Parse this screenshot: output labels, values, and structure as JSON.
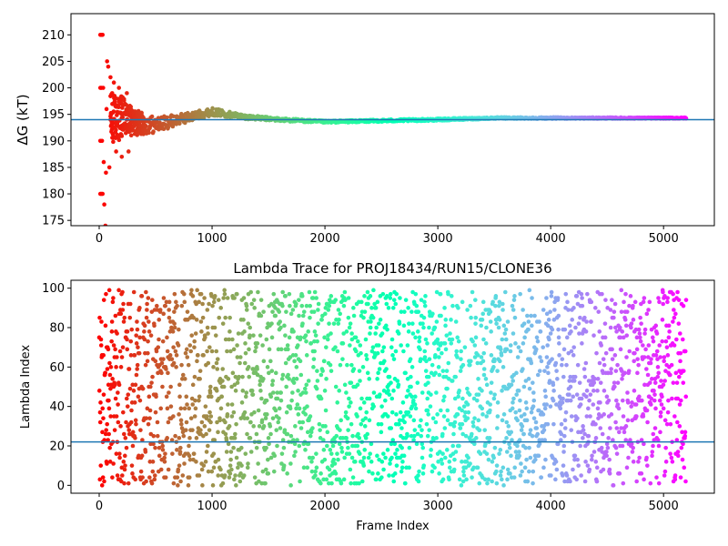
{
  "chart_data": [
    {
      "type": "scatter",
      "title": "",
      "xlabel": "",
      "ylabel": "ΔG (kT)",
      "xlim": [
        -250,
        5450
      ],
      "ylim": [
        174,
        214
      ],
      "xticks": [
        0,
        1000,
        2000,
        3000,
        4000,
        5000
      ],
      "yticks": [
        175,
        180,
        185,
        190,
        195,
        200,
        205,
        210
      ],
      "grid": false,
      "colormap": "rainbow",
      "hline": 194.0,
      "hline_color": "#1f77b4",
      "frames": 5200,
      "early_points": [
        {
          "x": 10,
          "y": 210
        },
        {
          "x": 20,
          "y": 210
        },
        {
          "x": 30,
          "y": 210
        },
        {
          "x": 10,
          "y": 200
        },
        {
          "x": 20,
          "y": 200
        },
        {
          "x": 35,
          "y": 200
        },
        {
          "x": 10,
          "y": 190
        },
        {
          "x": 25,
          "y": 190
        },
        {
          "x": 10,
          "y": 180
        },
        {
          "x": 20,
          "y": 180
        },
        {
          "x": 30,
          "y": 180
        },
        {
          "x": 45,
          "y": 178
        },
        {
          "x": 55,
          "y": 174
        },
        {
          "x": 40,
          "y": 186
        },
        {
          "x": 60,
          "y": 184
        },
        {
          "x": 70,
          "y": 205
        },
        {
          "x": 80,
          "y": 204
        },
        {
          "x": 65,
          "y": 196
        },
        {
          "x": 90,
          "y": 185
        },
        {
          "x": 100,
          "y": 202
        },
        {
          "x": 115,
          "y": 199
        },
        {
          "x": 130,
          "y": 201
        },
        {
          "x": 150,
          "y": 188
        },
        {
          "x": 175,
          "y": 200
        },
        {
          "x": 200,
          "y": 187
        },
        {
          "x": 245,
          "y": 199
        },
        {
          "x": 260,
          "y": 188
        }
      ],
      "convergence": [
        {
          "x": 100,
          "y": 194,
          "spread": 5
        },
        {
          "x": 200,
          "y": 194.5,
          "spread": 4
        },
        {
          "x": 300,
          "y": 193.5,
          "spread": 2.5
        },
        {
          "x": 500,
          "y": 193,
          "spread": 1.5
        },
        {
          "x": 700,
          "y": 194,
          "spread": 1.0
        },
        {
          "x": 1000,
          "y": 195.5,
          "spread": 0.7
        },
        {
          "x": 1300,
          "y": 194.5,
          "spread": 0.4
        },
        {
          "x": 1600,
          "y": 194,
          "spread": 0.3
        },
        {
          "x": 2000,
          "y": 193.6,
          "spread": 0.2
        },
        {
          "x": 3000,
          "y": 194,
          "spread": 0.2
        },
        {
          "x": 3500,
          "y": 194.3,
          "spread": 0.15
        },
        {
          "x": 5200,
          "y": 194.3,
          "spread": 0.1
        }
      ]
    },
    {
      "type": "scatter",
      "title": "Lambda Trace for PROJ18434/RUN15/CLONE36",
      "xlabel": "Frame Index",
      "ylabel": "Lambda Index",
      "xlim": [
        -250,
        5450
      ],
      "ylim": [
        -4,
        104
      ],
      "xticks": [
        0,
        1000,
        2000,
        3000,
        4000,
        5000
      ],
      "yticks": [
        0,
        20,
        40,
        60,
        80,
        100
      ],
      "grid": false,
      "colormap": "rainbow",
      "hline": 22,
      "hline_color": "#1f77b4",
      "frames": 5200,
      "lambda_range": [
        0,
        99
      ],
      "sample_every": 2
    }
  ]
}
